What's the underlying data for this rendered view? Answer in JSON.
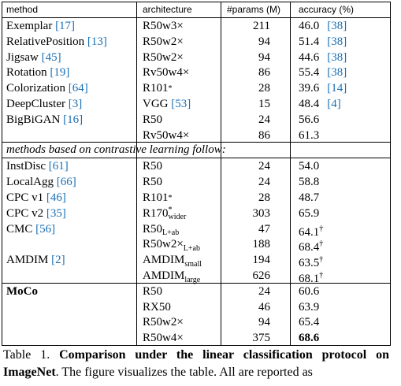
{
  "table": {
    "header": [
      "method",
      "architecture",
      "#params (M)",
      "accuracy (%)"
    ],
    "sections": [
      {
        "rows": [
          {
            "method": "Exemplar",
            "method_cite": "[17]",
            "arch": "R50w3×",
            "params": "211",
            "acc": "46.0",
            "acc_cite": "[38]"
          },
          {
            "method": "RelativePosition",
            "method_cite": "[13]",
            "arch": "R50w2×",
            "params": "94",
            "acc": "51.4",
            "acc_cite": "[38]"
          },
          {
            "method": "Jigsaw",
            "method_cite": "[45]",
            "arch": "R50w2×",
            "params": "94",
            "acc": "44.6",
            "acc_cite": "[38]"
          },
          {
            "method": "Rotation",
            "method_cite": "[19]",
            "arch": "Rv50w4×",
            "params": "86",
            "acc": "55.4",
            "acc_cite": "[38]"
          },
          {
            "method": "Colorization",
            "method_cite": "[64]",
            "arch": "R101",
            "arch_sup": "*",
            "params": "28",
            "acc": "39.6",
            "acc_cite": "[14]"
          },
          {
            "method": "DeepCluster",
            "method_cite": "[3]",
            "arch": "VGG",
            "arch_cite": "[53]",
            "params": "15",
            "acc": "48.4",
            "acc_cite": "[4]"
          },
          {
            "method": "BigBiGAN",
            "method_cite": "[16]",
            "arch": "R50",
            "params": "24",
            "acc": "56.6"
          },
          {
            "arch": "Rv50w4×",
            "params": "86",
            "acc": "61.3"
          }
        ]
      },
      {
        "note": "methods based on contrastive learning follow:",
        "rows": [
          {
            "method": "InstDisc",
            "method_cite": "[61]",
            "arch": "R50",
            "params": "24",
            "acc": "54.0"
          },
          {
            "method": "LocalAgg",
            "method_cite": "[66]",
            "arch": "R50",
            "params": "24",
            "acc": "58.8"
          },
          {
            "method": "CPC v1",
            "method_cite": "[46]",
            "arch": "R101",
            "arch_sup": "*",
            "params": "28",
            "acc": "48.7"
          },
          {
            "method": "CPC v2",
            "method_cite": "[35]",
            "arch": "R170",
            "arch_sup": "*",
            "arch_sub": "wider",
            "params": "303",
            "acc": "65.9"
          },
          {
            "method": "CMC",
            "method_cite": "[56]",
            "arch": "R50",
            "arch_sub": "L+ab",
            "params": "47",
            "acc": "64.1",
            "acc_sup": "†"
          },
          {
            "arch": "R50w2×",
            "arch_sub": "L+ab",
            "params": "188",
            "acc": "68.4",
            "acc_sup": "†"
          },
          {
            "method": "AMDIM",
            "method_cite": "[2]",
            "arch": "AMDIM",
            "arch_sub": "small",
            "params": "194",
            "acc": "63.5",
            "acc_sup": "†"
          },
          {
            "arch": "AMDIM",
            "arch_sub": "large",
            "params": "626",
            "acc": "68.1",
            "acc_sup": "†"
          }
        ]
      },
      {
        "rows": [
          {
            "method": "MoCo",
            "bold_method": true,
            "arch": "R50",
            "params": "24",
            "acc": "60.6"
          },
          {
            "arch": "RX50",
            "params": "46",
            "acc": "63.9"
          },
          {
            "arch": "R50w2×",
            "params": "94",
            "acc": "65.4"
          },
          {
            "arch": "R50w4×",
            "params": "375",
            "acc": "68.6",
            "bold_acc": true
          }
        ]
      }
    ]
  },
  "caption": {
    "label": "Table 1.",
    "title": "Comparison under the linear classification protocol on ImageNet",
    "text": ". The figure visualizes the table. All are reported as"
  }
}
